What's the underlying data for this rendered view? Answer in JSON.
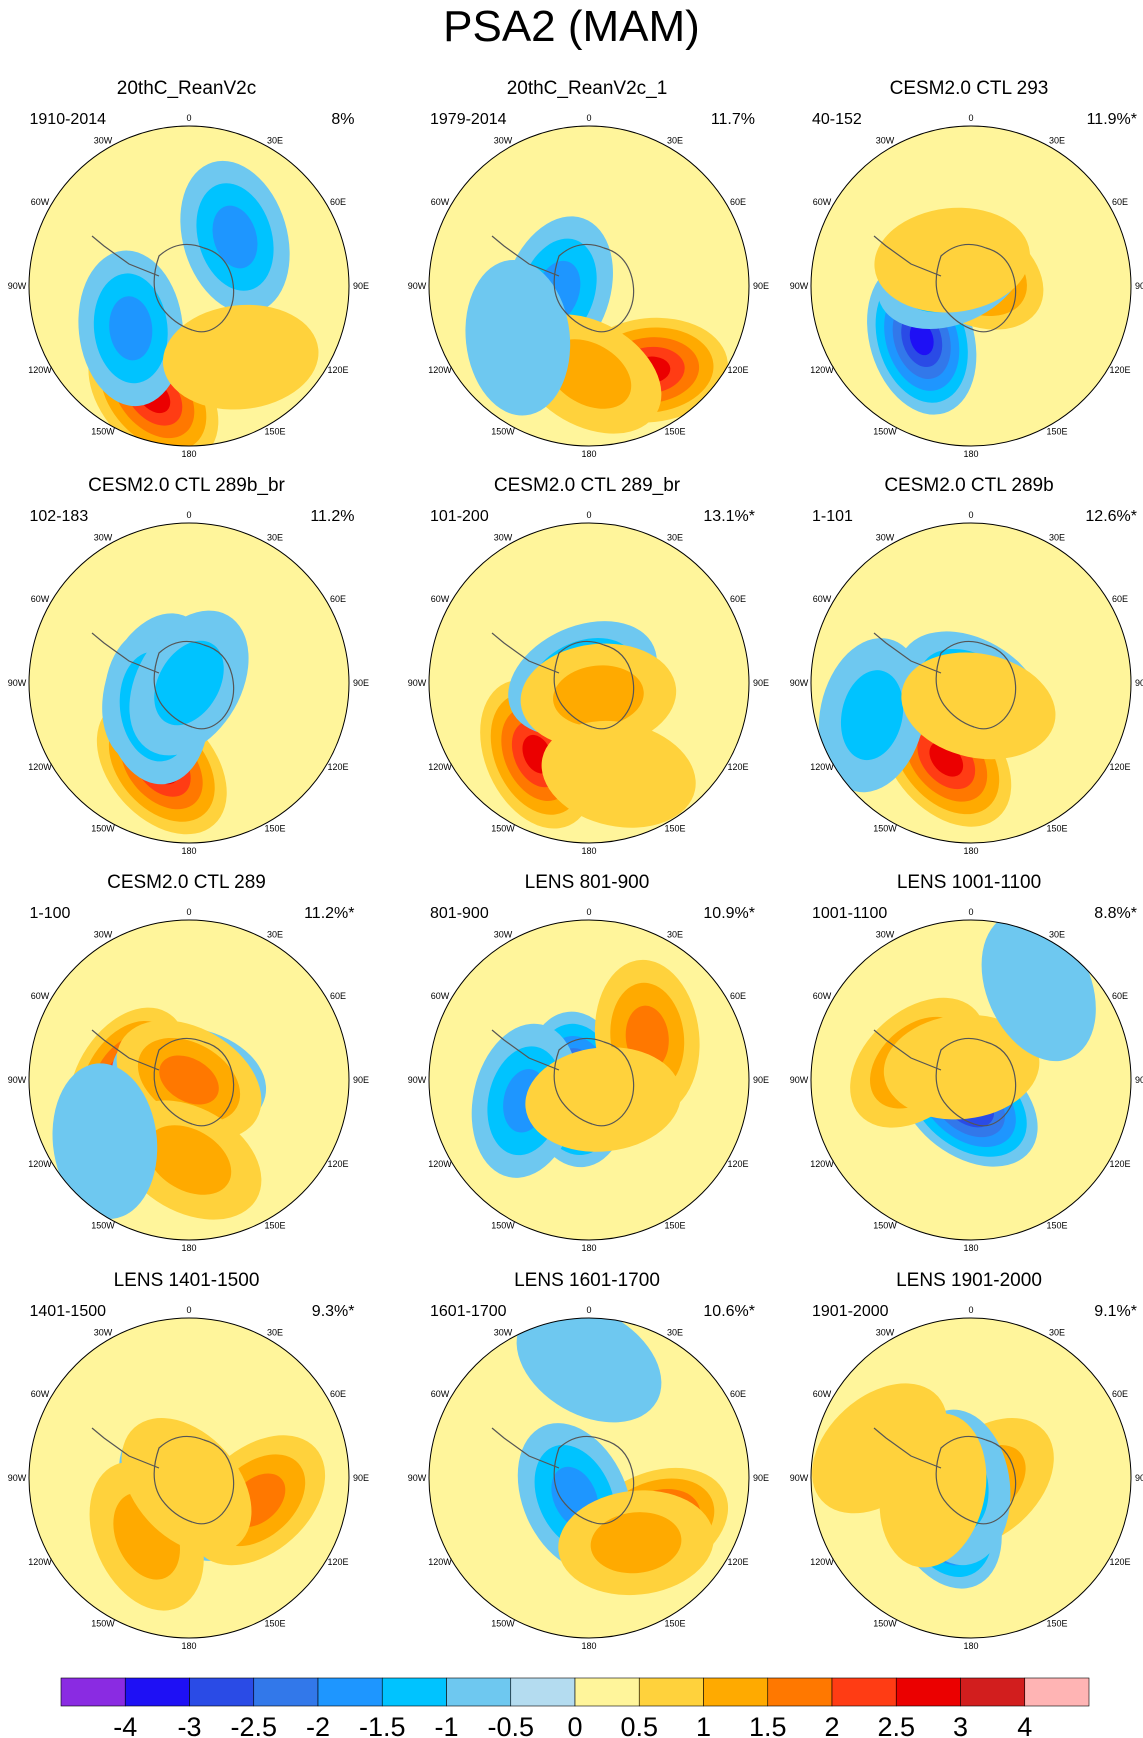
{
  "title": "PSA2 (MAM)",
  "palette": [
    "#8a2be2",
    "#1e10f5",
    "#2a4be6",
    "#3278ea",
    "#1e96ff",
    "#00c3ff",
    "#6ec8f0",
    "#b4dcf0",
    "#fff59b",
    "#ffd23c",
    "#ffaa00",
    "#ff7800",
    "#ff3c14",
    "#eb0000",
    "#d21e1e",
    "#ffb4b4"
  ],
  "colorbar_labels": [
    "-4",
    "-3",
    "-2.5",
    "-2",
    "-1.5",
    "-1",
    "-0.5",
    "0",
    "0.5",
    "1",
    "1.5",
    "2",
    "2.5",
    "3",
    "4"
  ],
  "longitude_labels": [
    "0",
    "30E",
    "60E",
    "90E",
    "120E",
    "150E",
    "180",
    "150W",
    "120W",
    "90W",
    "60W",
    "30W"
  ],
  "panels": [
    {
      "title": "20thC_ReanV2c",
      "period": "1910-2014",
      "variance": "8%",
      "features": [
        {
          "ax": 0.55,
          "ay": 0.72,
          "v": 2.5
        },
        {
          "ax": 0.12,
          "ay": 0.42,
          "v": -1.5
        },
        {
          "ax": -0.35,
          "ay": 0.45,
          "v": -1.5
        },
        {
          "ax": -0.1,
          "ay": -0.55,
          "v": 0.5
        }
      ]
    },
    {
      "title": "20thC_ReanV2c_1",
      "period": "1979-2014",
      "variance": "11.7%",
      "features": [
        {
          "ax": 0.4,
          "ay": 0.65,
          "v": 2.5
        },
        {
          "ax": 0.72,
          "ay": 0.2,
          "v": -1.5
        },
        {
          "ax": 0.0,
          "ay": -0.55,
          "v": 1.0
        },
        {
          "ax": -0.35,
          "ay": 0.55,
          "v": -0.5
        }
      ]
    },
    {
      "title": "CESM2.0 CTL 293",
      "period": "40-152",
      "variance": "11.9%*",
      "features": [
        {
          "ax": 0.62,
          "ay": 0.45,
          "v": -3.0
        },
        {
          "ax": 0.5,
          "ay": -0.1,
          "v": 2.0
        },
        {
          "ax": -0.65,
          "ay": -0.15,
          "v": -1.5
        },
        {
          "ax": -0.1,
          "ay": 0.2,
          "v": 0.5
        }
      ]
    },
    {
      "title": "CESM2.0 CTL 289b_br",
      "period": "102-183",
      "variance": "11.2%",
      "features": [
        {
          "ax": 0.55,
          "ay": 0.55,
          "v": 2.5
        },
        {
          "ax": 0.22,
          "ay": -0.2,
          "v": -1.5
        },
        {
          "ax": -0.35,
          "ay": 0.25,
          "v": -1.5
        },
        {
          "ax": 0.75,
          "ay": 0.0,
          "v": -1.0
        }
      ]
    },
    {
      "title": "CESM2.0 CTL 289_br",
      "period": "101-200",
      "variance": "13.1%*",
      "features": [
        {
          "ax": 0.6,
          "ay": 0.55,
          "v": 2.8
        },
        {
          "ax": 0.35,
          "ay": -0.05,
          "v": -1.5
        },
        {
          "ax": -0.6,
          "ay": 0.1,
          "v": 1.2
        },
        {
          "ax": -0.05,
          "ay": -0.6,
          "v": 0.5
        }
      ]
    },
    {
      "title": "CESM2.0 CTL 289b",
      "period": "1-101",
      "variance": "12.6%*",
      "features": [
        {
          "ax": 0.55,
          "ay": 0.5,
          "v": 2.8
        },
        {
          "ax": 0.5,
          "ay": 0.05,
          "v": -1.5
        },
        {
          "ax": -0.3,
          "ay": 0.65,
          "v": -1.0
        },
        {
          "ax": -0.55,
          "ay": 0.15,
          "v": 0.5
        }
      ]
    },
    {
      "title": "CESM2.0 CTL 289",
      "period": "1-100",
      "variance": "11.2%*",
      "features": [
        {
          "ax": 0.75,
          "ay": 0.38,
          "v": 2.8
        },
        {
          "ax": 0.45,
          "ay": 0.0,
          "v": -1.5
        },
        {
          "ax": -0.5,
          "ay": 0.0,
          "v": 1.5
        },
        {
          "ax": 0.0,
          "ay": -0.5,
          "v": 1.0
        },
        {
          "ax": -0.35,
          "ay": 0.65,
          "v": -0.5
        }
      ]
    },
    {
      "title": "LENS 801-900",
      "period": "801-900",
      "variance": "10.9%*",
      "features": [
        {
          "ax": 0.65,
          "ay": 0.1,
          "v": -3.0
        },
        {
          "ax": 0.15,
          "ay": 0.45,
          "v": 1.5
        },
        {
          "ax": -0.3,
          "ay": 0.42,
          "v": -1.5
        },
        {
          "ax": -0.1,
          "ay": -0.15,
          "v": 0.8
        }
      ]
    },
    {
      "title": "LENS 1001-1100",
      "period": "1001-1100",
      "variance": "8.8%*",
      "features": [
        {
          "ax": 0.52,
          "ay": 0.15,
          "v": -3.0
        },
        {
          "ax": 0.3,
          "ay": -0.35,
          "v": 1.5
        },
        {
          "ax": -0.1,
          "ay": 0.1,
          "v": 0.8
        },
        {
          "ax": 0.1,
          "ay": 0.72,
          "v": -0.5
        }
      ]
    },
    {
      "title": "LENS 1401-1500",
      "period": "1401-1500",
      "variance": "9.3%*",
      "features": [
        {
          "ax": 0.55,
          "ay": 0.1,
          "v": -2.0
        },
        {
          "ax": 0.3,
          "ay": 0.45,
          "v": 1.5
        },
        {
          "ax": 0.1,
          "ay": -0.45,
          "v": 1.0
        },
        {
          "ax": -0.45,
          "ay": 0.05,
          "v": 0.8
        }
      ]
    },
    {
      "title": "LENS 1601-1700",
      "period": "1601-1700",
      "variance": "10.6%*",
      "features": [
        {
          "ax": 0.35,
          "ay": 0.5,
          "v": 2.5
        },
        {
          "ax": 0.6,
          "ay": 0.15,
          "v": -1.5
        },
        {
          "ax": -0.1,
          "ay": -0.5,
          "v": 1.0
        },
        {
          "ax": 0.0,
          "ay": 0.72,
          "v": -0.5
        }
      ]
    },
    {
      "title": "LENS 1901-2000",
      "period": "1901-2000",
      "variance": "9.1%*",
      "features": [
        {
          "ax": 0.6,
          "ay": 0.28,
          "v": -3.0
        },
        {
          "ax": 0.8,
          "ay": -0.1,
          "v": 1.2
        },
        {
          "ax": -0.35,
          "ay": 0.1,
          "v": -1.0
        },
        {
          "ax": 0.2,
          "ay": -0.25,
          "v": 0.8
        },
        {
          "ax": -0.2,
          "ay": 0.6,
          "v": 0.8
        }
      ]
    }
  ]
}
